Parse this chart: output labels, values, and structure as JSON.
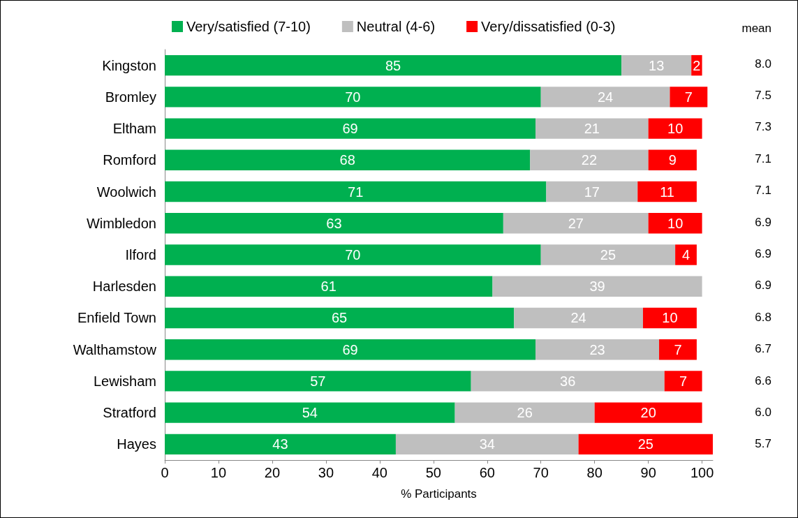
{
  "chart_data": {
    "type": "bar",
    "orientation": "horizontal",
    "stacked": true,
    "data_labels": true,
    "legend": "top",
    "grid": false,
    "xlabel": "% Participants",
    "categories": [
      "Kingston",
      "Bromley",
      "Eltham",
      "Romford",
      "Woolwich",
      "Wimbledon",
      "Ilford",
      "Harlesden",
      "Enfield Town",
      "Walthamstow",
      "Lewisham",
      "Stratford",
      "Hayes"
    ],
    "series": [
      {
        "name": "Very/satisfied (7-10)",
        "color": "#00b050",
        "values": [
          85,
          70,
          69,
          68,
          71,
          63,
          70,
          61,
          65,
          69,
          57,
          54,
          43
        ]
      },
      {
        "name": "Neutral (4-6)",
        "color": "#bfbfbf",
        "values": [
          13,
          24,
          21,
          22,
          17,
          27,
          25,
          39,
          24,
          23,
          36,
          26,
          34
        ]
      },
      {
        "name": "Very/dissatisfied (0-3)",
        "color": "#ff0000",
        "values": [
          2,
          7,
          10,
          9,
          11,
          10,
          4,
          null,
          10,
          7,
          7,
          20,
          25
        ]
      }
    ],
    "xlim": [
      0,
      102
    ],
    "xticks": [
      0,
      10,
      20,
      30,
      40,
      50,
      60,
      70,
      80,
      90,
      100
    ],
    "annotations": [
      "mean",
      "8.0",
      "7.5",
      "7.3",
      "7.1",
      "7.1",
      "6.9",
      "6.9",
      "6.9",
      "6.8",
      "6.7",
      "6.6",
      "6.0",
      "5.7"
    ]
  }
}
